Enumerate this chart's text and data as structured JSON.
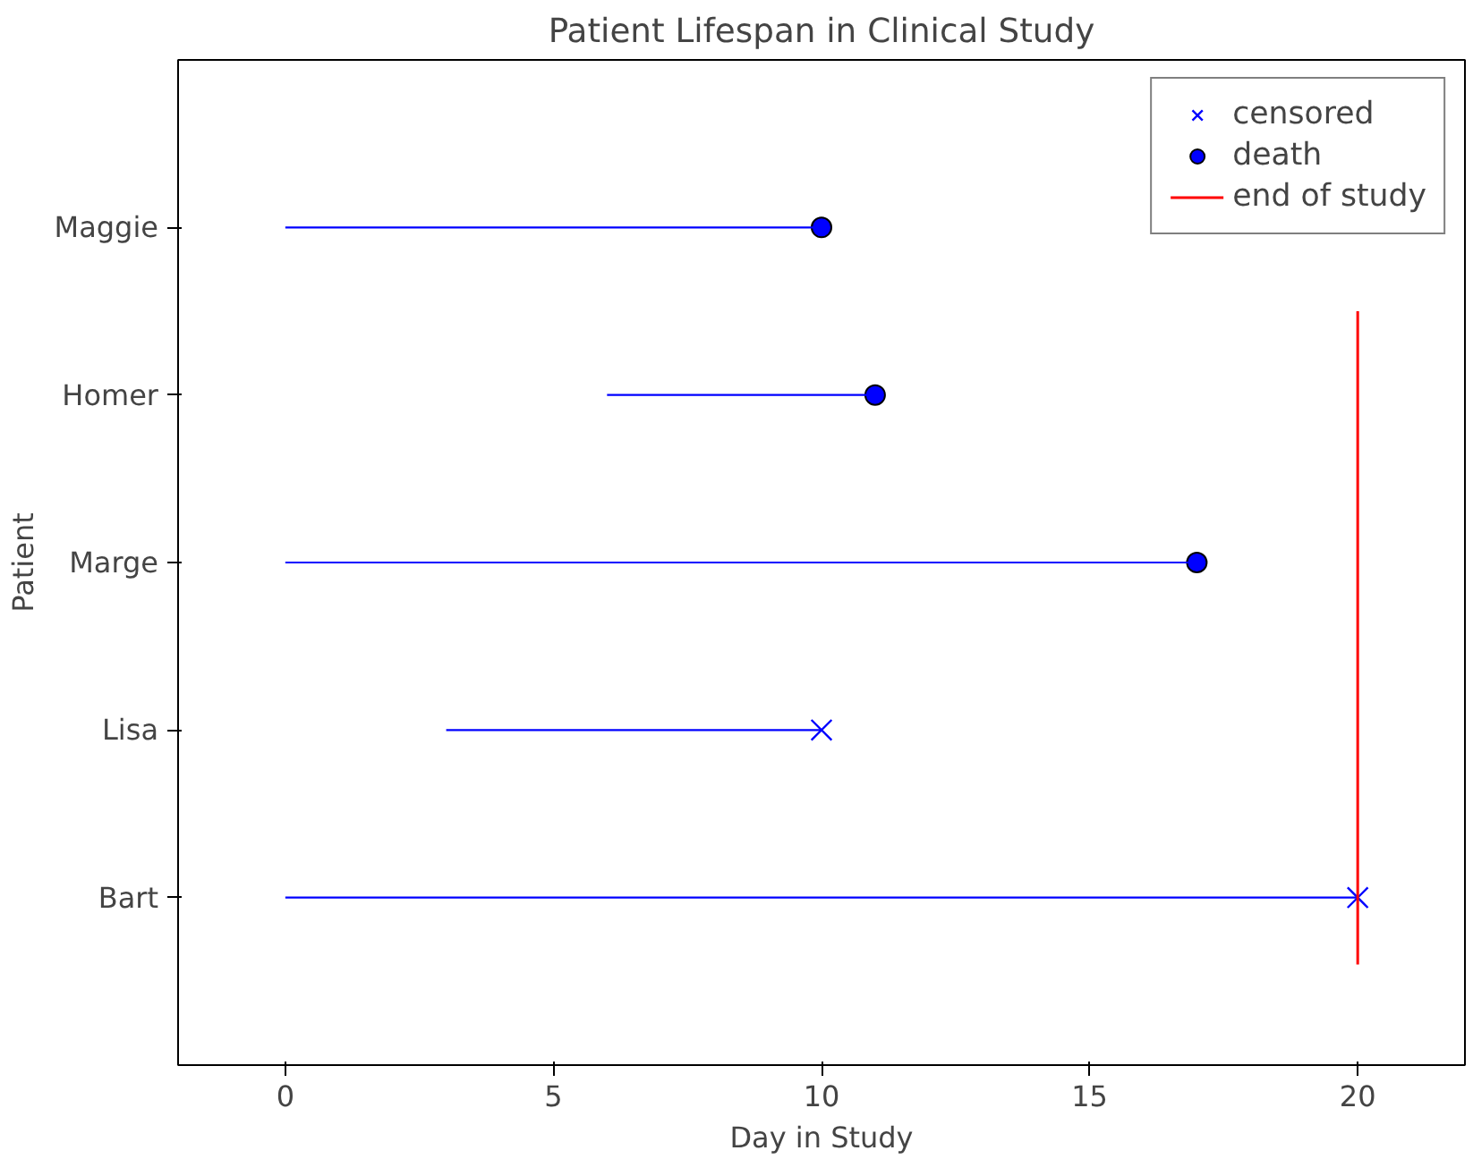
{
  "chart_data": {
    "type": "bar",
    "orientation": "horizontal",
    "title": "Patient Lifespan in Clinical Study",
    "xlabel": "Day in Study",
    "ylabel": "Patient",
    "categories": [
      "Maggie",
      "Homer",
      "Marge",
      "Lisa",
      "Bart"
    ],
    "series": [
      {
        "color": "#0000ff",
        "base": [
          0,
          6,
          0,
          3,
          0
        ],
        "values": [
          10,
          5,
          17,
          7,
          20
        ]
      },
      {
        "type": "scatter",
        "name": "censored",
        "marker": "cross",
        "color": "#0000ff",
        "values": [
          null,
          null,
          null,
          10,
          20
        ]
      },
      {
        "type": "scatter",
        "name": "death",
        "marker": "circle",
        "color": "#0000ff",
        "values": [
          10,
          11,
          17,
          null,
          null
        ]
      }
    ],
    "ref_lines": [
      {
        "axis": "x",
        "value": 20,
        "label": "end of study",
        "color": "#ff0000"
      }
    ],
    "xlim": [
      -2,
      22
    ],
    "xticks": [
      0,
      5,
      10,
      15,
      20
    ],
    "grid": false,
    "legend": "top right"
  }
}
